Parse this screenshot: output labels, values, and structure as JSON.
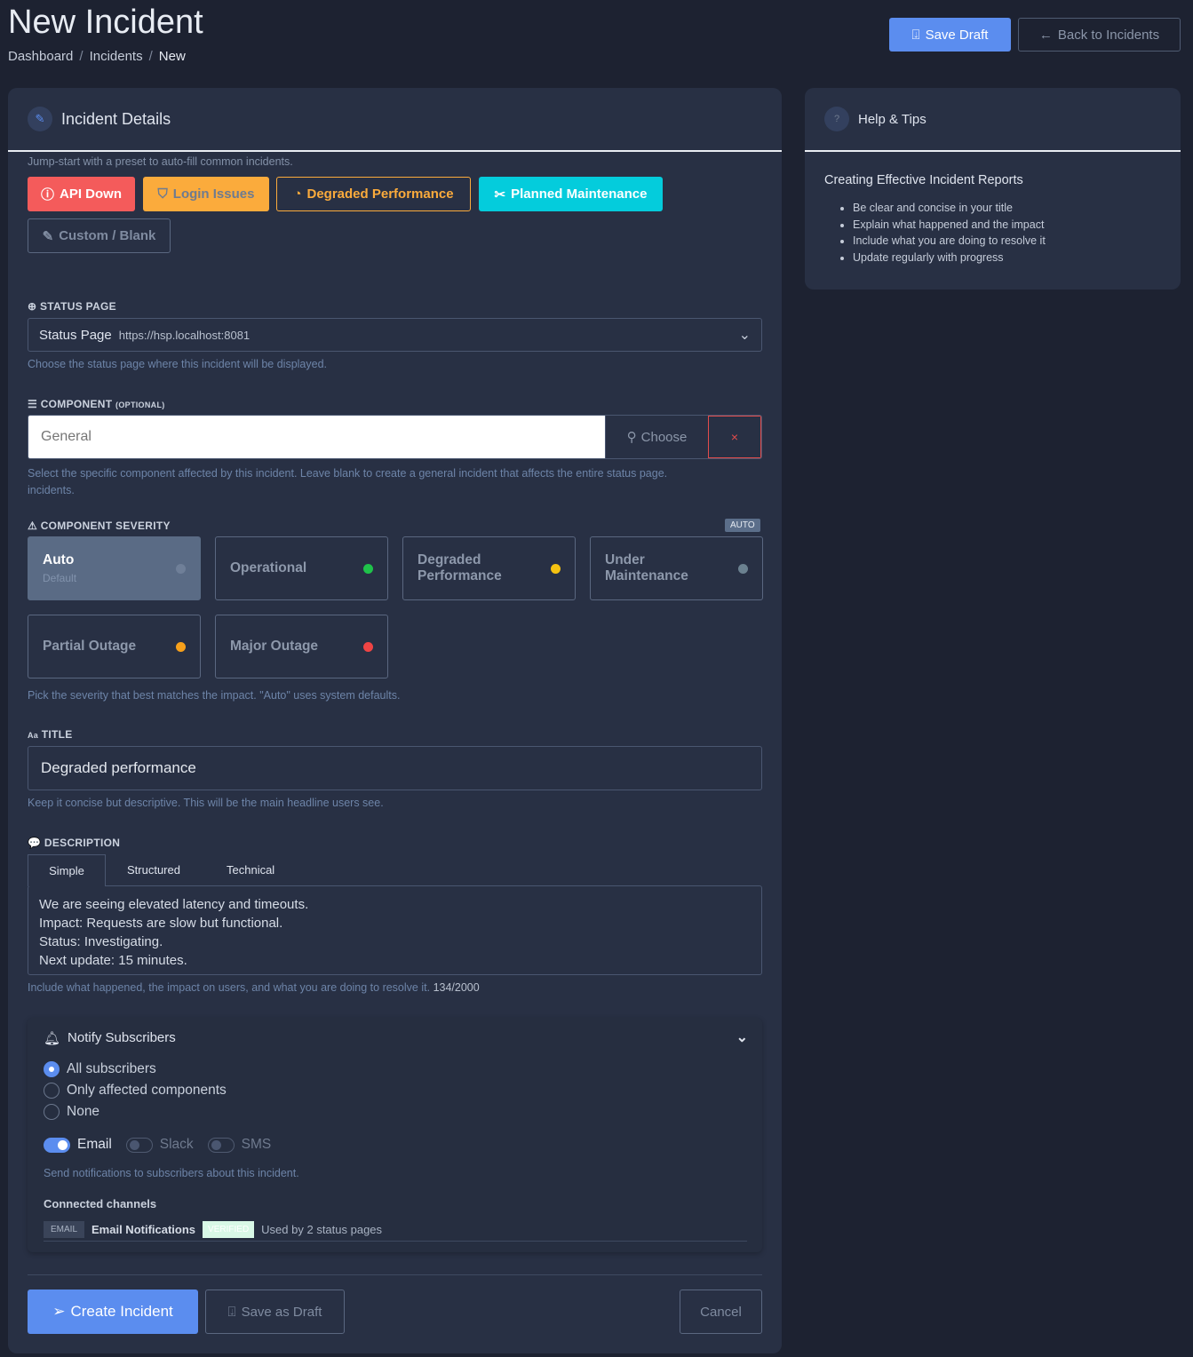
{
  "header": {
    "title": "New Incident",
    "breadcrumb": [
      "Dashboard",
      "Incidents",
      "New"
    ],
    "save_draft": "Save Draft",
    "back": "Back to Incidents"
  },
  "details": {
    "title": "Incident Details",
    "preset_hint": "Jump-start with a preset to auto-fill common incidents.",
    "presets": [
      "API Down",
      "Login Issues",
      "Degraded Performance",
      "Planned Maintenance",
      "Custom / Blank"
    ],
    "status_page": {
      "label": "STATUS PAGE",
      "value": "Status Page",
      "url": "https://hsp.localhost:8081",
      "help": "Choose the status page where this incident will be displayed."
    },
    "component": {
      "label": "COMPONENT",
      "optional": "(OPTIONAL)",
      "placeholder": "General",
      "choose": "Choose",
      "clear": "×",
      "help": "Select the specific component affected by this incident. Leave blank to create a general incident that affects the entire status page.",
      "help2": "incidents."
    },
    "severity": {
      "label": "COMPONENT SEVERITY",
      "badge": "AUTO",
      "selected": "Auto",
      "options": [
        {
          "label": "Auto",
          "sub": "Default",
          "color": "#6f7f98"
        },
        {
          "label": "Operational",
          "color": "#1fc24a"
        },
        {
          "label": "Degraded Performance",
          "color": "#f5c211"
        },
        {
          "label": "Under Maintenance",
          "color": "#6b8190"
        },
        {
          "label": "Partial Outage",
          "color": "#f7a01b"
        },
        {
          "label": "Major Outage",
          "color": "#ef4444"
        }
      ],
      "help": "Pick the severity that best matches the impact. \"Auto\" uses system defaults."
    },
    "title_field": {
      "label": "TITLE",
      "icon_text": "Aa",
      "value": "Degraded performance",
      "help": "Keep it concise but descriptive. This will be the main headline users see."
    },
    "description": {
      "label": "DESCRIPTION",
      "tabs": [
        "Simple",
        "Structured",
        "Technical"
      ],
      "active_tab": "Simple",
      "lines": [
        "We are seeing elevated latency and timeouts.",
        "Impact: Requests are slow but functional.",
        "Status: Investigating.",
        "Next update: 15 minutes."
      ],
      "help": "Include what happened, the impact on users, and what you are doing to resolve it.",
      "count": "134/2000"
    },
    "notify": {
      "title": "Notify Subscribers",
      "options": [
        "All subscribers",
        "Only affected components",
        "None"
      ],
      "selected": "All subscribers",
      "channels": [
        {
          "label": "Email",
          "on": true
        },
        {
          "label": "Slack",
          "on": false
        },
        {
          "label": "SMS",
          "on": false
        }
      ],
      "help": "Send notifications to subscribers about this incident.",
      "connected_label": "Connected channels",
      "connected": {
        "type": "EMAIL",
        "name": "Email Notifications",
        "badge": "VERIFIED",
        "usage": "Used by 2 status pages"
      }
    },
    "actions": {
      "create": "Create Incident",
      "draft": "Save as Draft",
      "cancel": "Cancel"
    }
  },
  "help": {
    "title": "Help & Tips",
    "heading": "Creating Effective Incident Reports",
    "tips": [
      "Be clear and concise in your title",
      "Explain what happened and the impact",
      "Include what you are doing to resolve it",
      "Update regularly with progress"
    ]
  },
  "colors": {
    "accent": "#5b8def",
    "danger": "#f45b5b",
    "warning": "#fbab3c",
    "info": "#04ccdc"
  }
}
